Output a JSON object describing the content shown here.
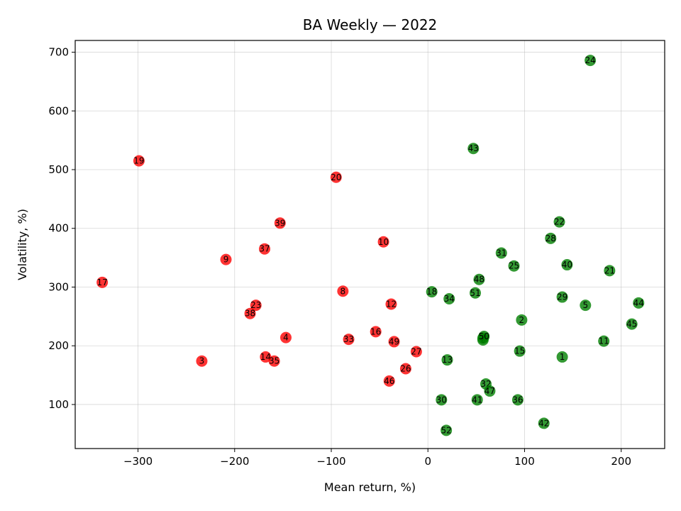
{
  "chart_data": {
    "type": "scatter",
    "title": "BA Weekly — 2022",
    "xlabel": "Mean return, %)",
    "ylabel": "Volatility, %)",
    "xlim": [
      -365,
      245
    ],
    "ylim": [
      25,
      720
    ],
    "xticks": [
      -300,
      -200,
      -100,
      0,
      100,
      200
    ],
    "yticks": [
      100,
      200,
      300,
      400,
      500,
      600,
      700
    ],
    "grid": true,
    "colors": {
      "negative": "#ff0000",
      "positive": "#008000"
    },
    "points": [
      {
        "label": "1",
        "x": 139,
        "y": 181
      },
      {
        "label": "2",
        "x": 97,
        "y": 244
      },
      {
        "label": "3",
        "x": -234,
        "y": 174
      },
      {
        "label": "4",
        "x": -147,
        "y": 214
      },
      {
        "label": "5",
        "x": 163,
        "y": 269
      },
      {
        "label": "6",
        "x": 57,
        "y": 210
      },
      {
        "label": "7",
        "x": 57,
        "y": 213
      },
      {
        "label": "8",
        "x": -88,
        "y": 293
      },
      {
        "label": "9",
        "x": -209,
        "y": 347
      },
      {
        "label": "10",
        "x": -46,
        "y": 377
      },
      {
        "label": "11",
        "x": 182,
        "y": 208
      },
      {
        "label": "12",
        "x": -38,
        "y": 271
      },
      {
        "label": "13",
        "x": 20,
        "y": 176
      },
      {
        "label": "14",
        "x": -168,
        "y": 181
      },
      {
        "label": "15",
        "x": 95,
        "y": 191
      },
      {
        "label": "16",
        "x": -54,
        "y": 224
      },
      {
        "label": "17",
        "x": -337,
        "y": 308
      },
      {
        "label": "18",
        "x": 4,
        "y": 292
      },
      {
        "label": "19",
        "x": -299,
        "y": 515
      },
      {
        "label": "20",
        "x": -95,
        "y": 487
      },
      {
        "label": "21",
        "x": 188,
        "y": 328
      },
      {
        "label": "22",
        "x": 136,
        "y": 411
      },
      {
        "label": "23",
        "x": -178,
        "y": 269
      },
      {
        "label": "24",
        "x": 168,
        "y": 686
      },
      {
        "label": "25",
        "x": 89,
        "y": 336
      },
      {
        "label": "26",
        "x": -23,
        "y": 161
      },
      {
        "label": "27",
        "x": -12,
        "y": 190
      },
      {
        "label": "28",
        "x": 127,
        "y": 383
      },
      {
        "label": "29",
        "x": 139,
        "y": 283
      },
      {
        "label": "30",
        "x": 14,
        "y": 108
      },
      {
        "label": "31",
        "x": 76,
        "y": 358
      },
      {
        "label": "32",
        "x": 60,
        "y": 135
      },
      {
        "label": "33",
        "x": -82,
        "y": 211
      },
      {
        "label": "34",
        "x": 22,
        "y": 280
      },
      {
        "label": "35",
        "x": -159,
        "y": 174
      },
      {
        "label": "36",
        "x": 93,
        "y": 108
      },
      {
        "label": "37",
        "x": -169,
        "y": 365
      },
      {
        "label": "38",
        "x": -184,
        "y": 255
      },
      {
        "label": "39",
        "x": -153,
        "y": 409
      },
      {
        "label": "40",
        "x": 144,
        "y": 338
      },
      {
        "label": "41",
        "x": 51,
        "y": 108
      },
      {
        "label": "42",
        "x": 120,
        "y": 68
      },
      {
        "label": "43",
        "x": 47,
        "y": 536
      },
      {
        "label": "44",
        "x": 218,
        "y": 273
      },
      {
        "label": "45",
        "x": 211,
        "y": 237
      },
      {
        "label": "46",
        "x": -40,
        "y": 140
      },
      {
        "label": "47",
        "x": 64,
        "y": 123
      },
      {
        "label": "48",
        "x": 53,
        "y": 313
      },
      {
        "label": "49",
        "x": -35,
        "y": 207
      },
      {
        "label": "50",
        "x": 58,
        "y": 216
      },
      {
        "label": "51",
        "x": 49,
        "y": 290
      },
      {
        "label": "52",
        "x": 19,
        "y": 56
      }
    ]
  }
}
